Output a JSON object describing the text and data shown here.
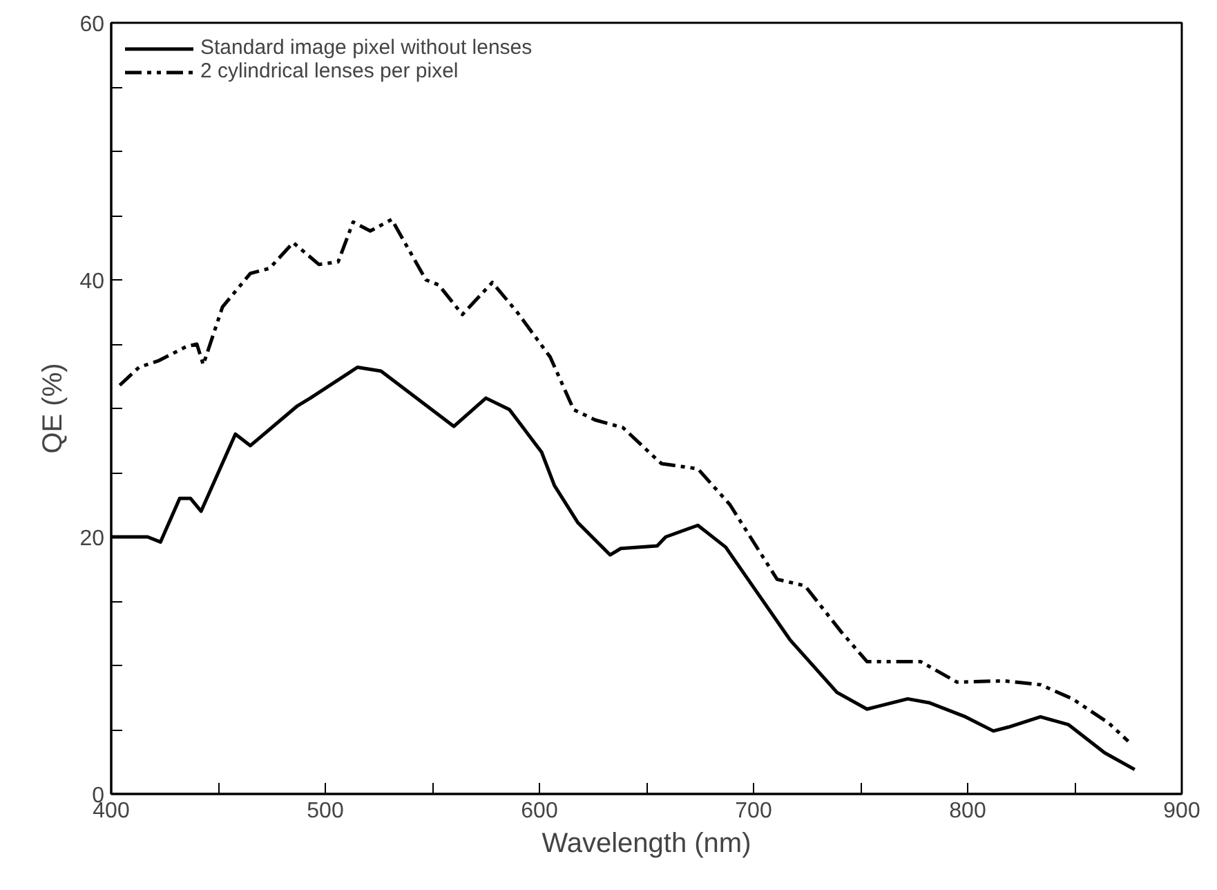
{
  "chart_data": {
    "type": "line",
    "xlabel": "Wavelength (nm)",
    "ylabel": "QE (%)",
    "xlim": [
      400,
      900
    ],
    "ylim": [
      0,
      60
    ],
    "xticks": [
      400,
      {
        "value": 450,
        "label": null
      },
      500,
      {
        "value": 550,
        "label": null
      },
      600,
      {
        "value": 650,
        "label": null
      },
      700,
      {
        "value": 750,
        "label": null
      },
      800,
      {
        "value": 850,
        "label": null
      },
      900
    ],
    "yticks": [
      0,
      {
        "value": 5,
        "label": null
      },
      {
        "value": 10,
        "label": null
      },
      {
        "value": 15,
        "label": null
      },
      20,
      {
        "value": 25,
        "label": null
      },
      {
        "value": 30,
        "label": null
      },
      {
        "value": 35,
        "label": null
      },
      40,
      {
        "value": 45,
        "label": null
      },
      {
        "value": 50,
        "label": null
      },
      {
        "value": 55,
        "label": null
      },
      60
    ],
    "grid": false,
    "legend": "top left",
    "marker": "none",
    "series": [
      {
        "name": "Standard image pixel without lenses",
        "color": "#000000",
        "line_style": "solid",
        "x": [
          400,
          417,
          423,
          432,
          437,
          442,
          458,
          465,
          487,
          493,
          515,
          526,
          560,
          575,
          586,
          601,
          607,
          618,
          633,
          638,
          655,
          659,
          674,
          687,
          702,
          717,
          739,
          753,
          772,
          782,
          799,
          812,
          819,
          834,
          847,
          864,
          878
        ],
        "values": [
          20,
          20,
          19.6,
          23,
          23,
          22,
          28,
          27.1,
          30.2,
          30.8,
          33.2,
          32.9,
          28.6,
          30.8,
          29.9,
          26.6,
          24,
          21.1,
          18.6,
          19.1,
          19.3,
          20,
          20.9,
          19.2,
          15.6,
          12,
          7.9,
          6.6,
          7.4,
          7.1,
          6,
          4.9,
          5.2,
          6,
          5.4,
          3.2,
          1.9
        ]
      },
      {
        "name": "2 cylindrical lenses per pixel",
        "color": "#000000",
        "line_style": "dashed",
        "x": [
          404,
          413,
          422,
          435,
          440,
          443,
          452,
          465,
          474,
          485,
          497,
          506,
          513,
          521,
          531,
          547,
          553,
          564,
          578,
          590,
          605,
          616,
          626,
          639,
          655,
          657,
          674,
          689,
          711,
          724,
          741,
          753,
          778,
          795,
          817,
          834,
          849,
          866,
          875
        ],
        "values": [
          31.8,
          33.2,
          33.7,
          34.8,
          35,
          33.4,
          37.9,
          40.5,
          40.9,
          42.9,
          41.2,
          41.4,
          44.5,
          43.8,
          44.7,
          40,
          39.6,
          37.3,
          39.8,
          37.4,
          34,
          29.9,
          29.1,
          28.5,
          26,
          25.7,
          25.3,
          22.5,
          16.7,
          16.2,
          12.6,
          10.3,
          10.3,
          8.7,
          8.8,
          8.5,
          7.4,
          5.5,
          4.1
        ]
      }
    ]
  }
}
